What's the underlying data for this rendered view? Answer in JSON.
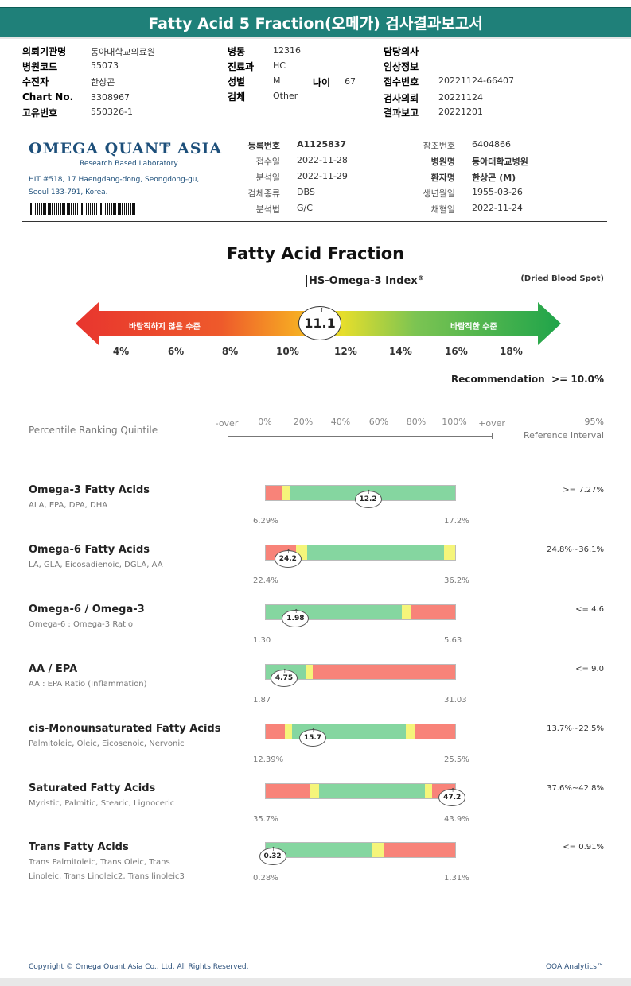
{
  "header": {
    "title": "Fatty Acid 5 Fraction(오메가) 검사결과보고서",
    "fields_left": [
      {
        "label": "의뢰기관명",
        "value": "동아대학교의료원"
      },
      {
        "label": "병원코드",
        "value": "55073"
      },
      {
        "label": "수진자",
        "value": "한상곤"
      },
      {
        "label": "Chart No.",
        "value": "3308967"
      },
      {
        "label": "고유번호",
        "value": "550326-1"
      }
    ],
    "fields_mid": [
      {
        "label": "병동",
        "value": "12316"
      },
      {
        "label": "진료과",
        "value": "HC"
      },
      {
        "label": "성별",
        "value": "M"
      },
      {
        "label": "검체",
        "value": "Other"
      }
    ],
    "age_label": "나이",
    "age_value": "67",
    "fields_right": [
      {
        "label": "담당의사",
        "value": ""
      },
      {
        "label": "임상정보",
        "value": ""
      },
      {
        "label": "접수번호",
        "value": "20221124-66407"
      },
      {
        "label": "검사의뢰",
        "value": "20221124"
      },
      {
        "label": "결과보고",
        "value": "20221201"
      }
    ]
  },
  "lab": {
    "logo": "OMEGA QUANT ASIA",
    "tagline": "Research Based Laboratory",
    "address_line1": "HIT #518, 17 Haengdang-dong, Seongdong-gu,",
    "address_line2": "Seoul 133-791, Korea.",
    "info_mid": [
      {
        "label": "등록번호",
        "value": "A1125837",
        "bold": true
      },
      {
        "label": "접수일",
        "value": "2022-11-28",
        "bold": false
      },
      {
        "label": "분석일",
        "value": "2022-11-29",
        "bold": false
      },
      {
        "label": "검체종류",
        "value": "DBS",
        "bold": false
      },
      {
        "label": "분석법",
        "value": "G/C",
        "bold": false
      }
    ],
    "info_right": [
      {
        "label": "참조번호",
        "value": "6404866",
        "bold": false
      },
      {
        "label": "병원명",
        "value": "동아대학교병원",
        "bold": true
      },
      {
        "label": "환자명",
        "value": "한상곤 (M)",
        "bold": true
      },
      {
        "label": "생년월일",
        "value": "1955-03-26",
        "bold": false
      },
      {
        "label": "채혈일",
        "value": "2022-11-24",
        "bold": false
      }
    ]
  },
  "index": {
    "section_title": "Fatty Acid Fraction",
    "index_title": "HS-Omega-3 Index",
    "reg_mark": "®",
    "sample_type": "(Dried Blood Spot)",
    "bad_label": "바람직하지 않은 수준",
    "good_label": "바람직한 수준",
    "value": "11.1",
    "ticks": [
      "4%",
      "6%",
      "8%",
      "10%",
      "12%",
      "14%",
      "16%",
      "18%"
    ],
    "recommendation_label": "Recommendation",
    "recommendation_value": ">= 10.0%"
  },
  "quintile": {
    "label": "Percentile Ranking Quintile",
    "scale": [
      "-over",
      "0%",
      "20%",
      "40%",
      "60%",
      "80%",
      "100%",
      "+over"
    ],
    "ref_line1": "95%",
    "ref_line2": "Reference Interval"
  },
  "rows": [
    {
      "title": "Omega-3 Fatty Acids",
      "sub1": "ALA, EPA, DPA, DHA",
      "sub2": "",
      "min": "6.29%",
      "max": "17.2%",
      "value": "12.2",
      "ref": ">= 7.27%",
      "value_pos": 0.54,
      "segments": [
        {
          "color": "#f88379",
          "w": 0.09
        },
        {
          "color": "#f5f57a",
          "w": 0.04
        },
        {
          "color": "#85d6a0",
          "w": 0.87
        }
      ]
    },
    {
      "title": "Omega-6 Fatty Acids",
      "sub1": "LA, GLA, Eicosadienoic, DGLA, AA",
      "sub2": "",
      "min": "22.4%",
      "max": "36.2%",
      "value": "24.2",
      "ref": "24.8%~36.1%",
      "value_pos": 0.12,
      "segments": [
        {
          "color": "#f88379",
          "w": 0.16
        },
        {
          "color": "#f5f57a",
          "w": 0.06
        },
        {
          "color": "#85d6a0",
          "w": 0.72
        },
        {
          "color": "#f5f57a",
          "w": 0.06
        }
      ]
    },
    {
      "title": "Omega-6 / Omega-3",
      "sub1": "Omega-6 : Omega-3 Ratio",
      "sub2": "",
      "min": "1.30",
      "max": "5.63",
      "value": "1.98",
      "ref": "<= 4.6",
      "value_pos": 0.16,
      "segments": [
        {
          "color": "#85d6a0",
          "w": 0.72
        },
        {
          "color": "#f5f57a",
          "w": 0.05
        },
        {
          "color": "#f88379",
          "w": 0.23
        }
      ]
    },
    {
      "title": "AA / EPA",
      "sub1": "AA : EPA Ratio (Inflammation)",
      "sub2": "",
      "min": "1.87",
      "max": "31.03",
      "value": "4.75",
      "ref": "<= 9.0",
      "value_pos": 0.1,
      "segments": [
        {
          "color": "#85d6a0",
          "w": 0.21
        },
        {
          "color": "#f5f57a",
          "w": 0.04
        },
        {
          "color": "#f88379",
          "w": 0.75
        }
      ]
    },
    {
      "title": "cis-Monounsaturated Fatty Acids",
      "sub1": "Palmitoleic, Oleic, Eicosenoic, Nervonic",
      "sub2": "",
      "min": "12.39%",
      "max": "25.5%",
      "value": "15.7",
      "ref": "13.7%~22.5%",
      "value_pos": 0.25,
      "segments": [
        {
          "color": "#f88379",
          "w": 0.1
        },
        {
          "color": "#f5f57a",
          "w": 0.04
        },
        {
          "color": "#85d6a0",
          "w": 0.6
        },
        {
          "color": "#f5f57a",
          "w": 0.05
        },
        {
          "color": "#f88379",
          "w": 0.21
        }
      ]
    },
    {
      "title": "Saturated Fatty Acids",
      "sub1": "Myristic, Palmitic, Stearic, Lignoceric",
      "sub2": "",
      "min": "35.7%",
      "max": "43.9%",
      "value": "47.2",
      "ref": "37.6%~42.8%",
      "value_pos": 0.98,
      "segments": [
        {
          "color": "#f88379",
          "w": 0.23
        },
        {
          "color": "#f5f57a",
          "w": 0.05
        },
        {
          "color": "#85d6a0",
          "w": 0.56
        },
        {
          "color": "#f5f57a",
          "w": 0.04
        },
        {
          "color": "#f88379",
          "w": 0.12
        }
      ]
    },
    {
      "title": "Trans Fatty Acids",
      "sub1": "Trans Palmitoleic, Trans Oleic, Trans",
      "sub2": "Linoleic, Trans Linoleic2, Trans linoleic3",
      "min": "0.28%",
      "max": "1.31%",
      "value": "0.32",
      "ref": "<= 0.91%",
      "value_pos": 0.04,
      "segments": [
        {
          "color": "#85d6a0",
          "w": 0.56
        },
        {
          "color": "#f5f57a",
          "w": 0.06
        },
        {
          "color": "#f88379",
          "w": 0.38
        }
      ]
    }
  ],
  "footer": {
    "copyright": "Copyright © Omega Quant Asia Co., Ltd.  All Rights Reserved.",
    "brand": "OQA Analytics™"
  }
}
